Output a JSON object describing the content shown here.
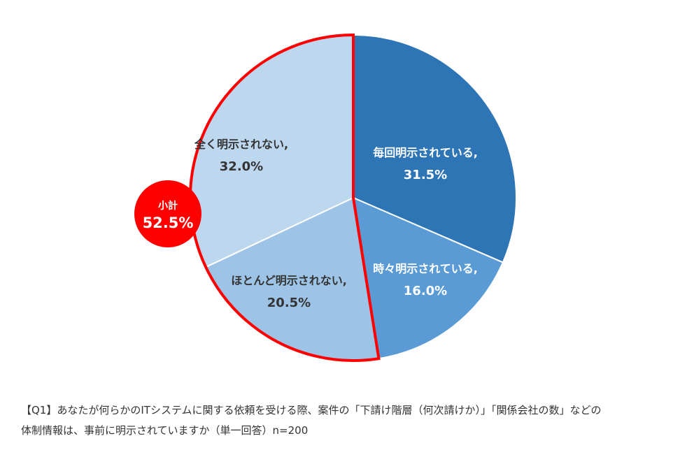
{
  "chart_data": {
    "type": "pie",
    "slices": [
      {
        "label": "毎回明示されている,",
        "value": 31.5,
        "value_label": "31.5%",
        "color": "#2E75B6",
        "text_color": "#ffffff"
      },
      {
        "label": "時々明示されている,",
        "value": 16.0,
        "value_label": "16.0%",
        "color": "#5B9BD5",
        "text_color": "#ffffff"
      },
      {
        "label": "ほとんど明示されない,",
        "value": 20.5,
        "value_label": "20.5%",
        "color": "#9DC3E6",
        "text_color": "#333333"
      },
      {
        "label": "全く明示されない,",
        "value": 32.0,
        "value_label": "32.0%",
        "color": "#BDD7EE",
        "text_color": "#333333"
      }
    ],
    "highlight": {
      "label": "小計",
      "value": 52.5,
      "value_label": "52.5%",
      "color": "#FF0000"
    }
  },
  "caption": {
    "line1": "【Q1】あなたが何らかのITシステムに関する依頼を受ける際、案件の「下請け階層（何次請けか）」「関係会社の数」などの",
    "line2": "体制情報は、事前に明示されていますか（単一回答）n=200"
  }
}
